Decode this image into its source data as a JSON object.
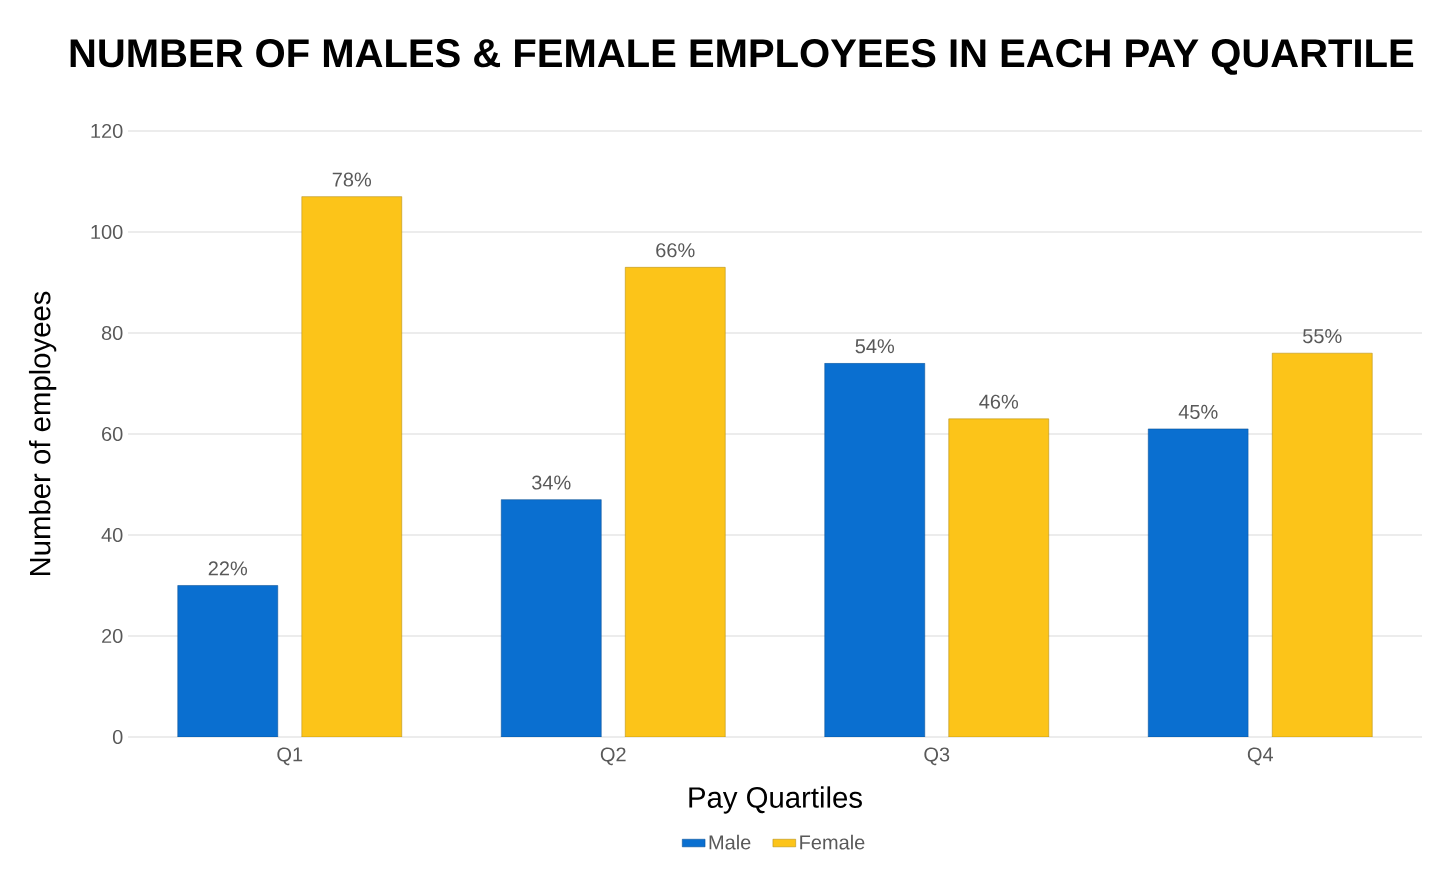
{
  "chart_data": {
    "type": "bar",
    "title": "NUMBER OF MALES & FEMALE EMPLOYEES IN EACH PAY QUARTILE",
    "xlabel": "Pay Quartiles",
    "ylabel": "Number of employees",
    "categories": [
      "Q1",
      "Q2",
      "Q3",
      "Q4"
    ],
    "series": [
      {
        "name": "Male",
        "color": "#0a6fd0",
        "values": [
          30,
          47,
          74,
          61
        ]
      },
      {
        "name": "Female",
        "color": "#fcc419",
        "values": [
          107,
          93,
          63,
          76
        ]
      }
    ],
    "annotations": [
      "22%",
      "78%",
      "34%",
      "66%",
      "54%",
      "46%",
      "45%",
      "55%"
    ],
    "ylim": [
      0,
      120
    ],
    "yticks": [
      0,
      20,
      40,
      60,
      80,
      100,
      120
    ],
    "grid": "y",
    "legend": "bottom"
  }
}
